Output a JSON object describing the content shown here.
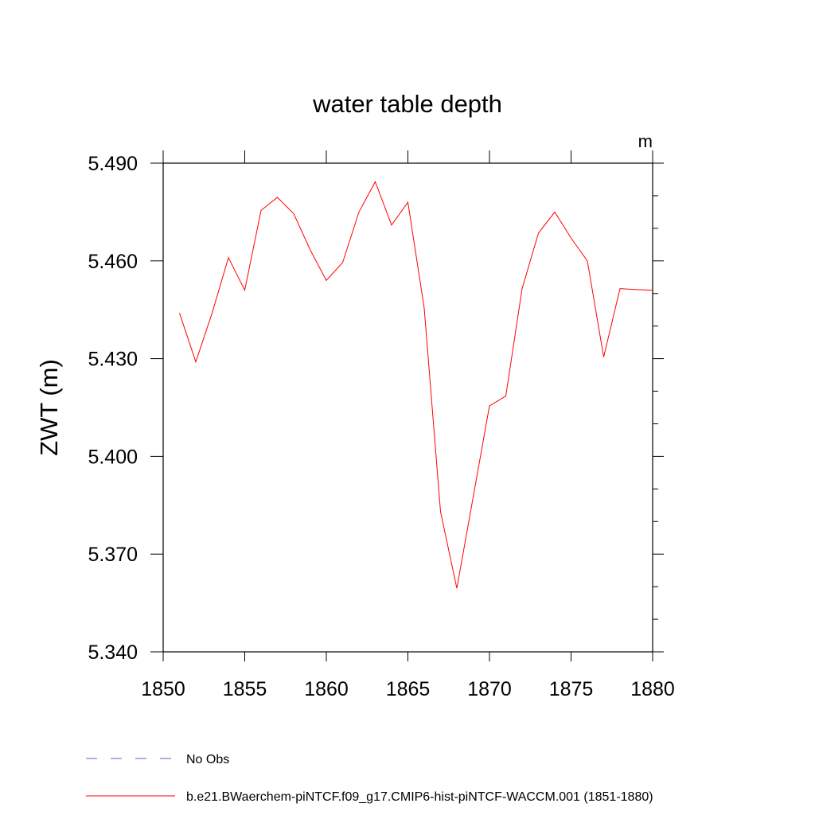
{
  "chart_data": {
    "type": "line",
    "title": "water table depth",
    "units_label": "m",
    "xlabel": "",
    "ylabel": "ZWT  (m)",
    "xlim": [
      1850,
      1880
    ],
    "ylim": [
      5.34,
      5.49
    ],
    "xticks": [
      "1850",
      "1855",
      "1860",
      "1865",
      "1870",
      "1875",
      "1880"
    ],
    "yticks": [
      "5.340",
      "5.370",
      "5.400",
      "5.430",
      "5.460",
      "5.490"
    ],
    "grid": false,
    "series": [
      {
        "name": "b.e21.BWaerchem-piNTCF.f09_g17.CMIP6-hist-piNTCF-WACCM.001 (1851-1880)",
        "color": "#ff0000",
        "style": "solid",
        "x": [
          1851,
          1852,
          1853,
          1854,
          1855,
          1856,
          1857,
          1858,
          1859,
          1860,
          1861,
          1862,
          1863,
          1864,
          1865,
          1866,
          1867,
          1868,
          1869,
          1870,
          1871,
          1872,
          1873,
          1874,
          1875,
          1876,
          1877,
          1878,
          1879,
          1880
        ],
        "y": [
          5.444,
          5.429,
          5.444,
          5.461,
          5.451,
          5.4755,
          5.4795,
          5.4745,
          5.4635,
          5.454,
          5.4595,
          5.475,
          5.4843,
          5.471,
          5.478,
          5.4455,
          5.383,
          5.3595,
          5.3875,
          5.4155,
          5.4185,
          5.4515,
          5.4685,
          5.475,
          5.467,
          5.46,
          5.4305,
          5.4515,
          5.4512,
          5.451
        ]
      }
    ],
    "legend": [
      {
        "label": "No Obs",
        "color": "#6a5acd",
        "style": "dashed"
      },
      {
        "label": "b.e21.BWaerchem-piNTCF.f09_g17.CMIP6-hist-piNTCF-WACCM.001 (1851-1880)",
        "color": "#ff0000",
        "style": "solid"
      }
    ],
    "legend_position": "bottom"
  }
}
